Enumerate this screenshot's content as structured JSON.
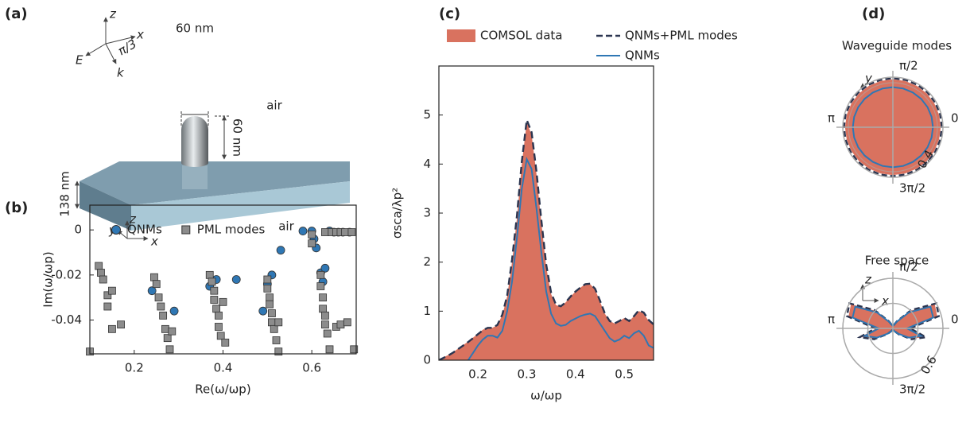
{
  "panel_labels": [
    "(a)",
    "(b)",
    "(c)",
    "(d)"
  ],
  "illustration": {
    "dims": [
      "60 nm",
      "60 nm",
      "138 nm"
    ],
    "media": [
      "air",
      "air"
    ],
    "axes": [
      "z",
      "x",
      "E",
      "k",
      "π/3",
      "y",
      "z",
      "x"
    ]
  },
  "chart_data": [
    {
      "type": "scatter",
      "xlabel": "Re(ω/ωp)",
      "ylabel": "Im(ω/ωp)",
      "xlim": [
        0.1,
        0.7
      ],
      "ylim": [
        -0.055,
        0.011
      ],
      "xticks": [
        0.2,
        0.4,
        0.6
      ],
      "yticks": [
        0,
        -0.02,
        -0.04
      ],
      "legend": "upper left",
      "series": [
        {
          "name": "QNMs",
          "color": "#2f77b4",
          "marker": "circle",
          "x": [
            0.24,
            0.29,
            0.37,
            0.385,
            0.43,
            0.49,
            0.5,
            0.51,
            0.53,
            0.58,
            0.6,
            0.605,
            0.61,
            0.62,
            0.625,
            0.63,
            0.64,
            0.65,
            0.66,
            0.67,
            0.685
          ],
          "values": [
            -0.027,
            -0.036,
            -0.025,
            -0.022,
            -0.022,
            -0.036,
            -0.024,
            -0.02,
            -0.009,
            -0.0005,
            -0.0005,
            -0.004,
            -0.008,
            -0.019,
            -0.023,
            -0.017,
            -0.0005,
            -0.001,
            -0.001,
            -0.001,
            -0.001
          ]
        },
        {
          "name": "PML modes",
          "color": "#8c8c8c",
          "marker": "square",
          "x": [
            0.1,
            0.12,
            0.125,
            0.13,
            0.14,
            0.14,
            0.15,
            0.15,
            0.17,
            0.245,
            0.25,
            0.255,
            0.26,
            0.265,
            0.27,
            0.275,
            0.28,
            0.285,
            0.37,
            0.375,
            0.38,
            0.38,
            0.385,
            0.39,
            0.39,
            0.395,
            0.405,
            0.4,
            0.5,
            0.5,
            0.505,
            0.505,
            0.51,
            0.51,
            0.515,
            0.52,
            0.525,
            0.525,
            0.6,
            0.6,
            0.62,
            0.62,
            0.625,
            0.625,
            0.63,
            0.63,
            0.635,
            0.64,
            0.655,
            0.665,
            0.68,
            0.695,
            0.63,
            0.645,
            0.655,
            0.665,
            0.675,
            0.69
          ],
          "values": [
            -0.054,
            -0.016,
            -0.019,
            -0.022,
            -0.029,
            -0.034,
            -0.027,
            -0.044,
            -0.042,
            -0.021,
            -0.024,
            -0.03,
            -0.034,
            -0.038,
            -0.044,
            -0.048,
            -0.053,
            -0.045,
            -0.02,
            -0.023,
            -0.027,
            -0.031,
            -0.035,
            -0.038,
            -0.043,
            -0.047,
            -0.05,
            -0.032,
            -0.022,
            -0.026,
            -0.03,
            -0.033,
            -0.037,
            -0.041,
            -0.044,
            -0.049,
            -0.054,
            -0.041,
            -0.002,
            -0.006,
            -0.02,
            -0.025,
            -0.03,
            -0.035,
            -0.038,
            -0.042,
            -0.046,
            -0.053,
            -0.043,
            -0.042,
            -0.041,
            -0.053,
            -0.001,
            -0.001,
            -0.001,
            -0.001,
            -0.001,
            -0.001
          ]
        }
      ]
    },
    {
      "type": "line",
      "xlabel": "ω/ωp",
      "ylabel": "σsca/λp²",
      "xlim": [
        0.12,
        0.56
      ],
      "ylim": [
        0,
        6
      ],
      "xticks": [
        0.2,
        0.3,
        0.4,
        0.5
      ],
      "yticks": [
        0,
        1,
        2,
        3,
        4,
        5
      ],
      "legend": "top",
      "x": [
        0.12,
        0.13,
        0.14,
        0.15,
        0.16,
        0.17,
        0.18,
        0.19,
        0.2,
        0.21,
        0.22,
        0.23,
        0.24,
        0.25,
        0.26,
        0.27,
        0.28,
        0.29,
        0.3,
        0.31,
        0.32,
        0.33,
        0.34,
        0.35,
        0.36,
        0.37,
        0.38,
        0.39,
        0.4,
        0.41,
        0.42,
        0.43,
        0.44,
        0.45,
        0.46,
        0.47,
        0.48,
        0.49,
        0.5,
        0.51,
        0.52,
        0.53,
        0.54,
        0.55,
        0.56
      ],
      "series": [
        {
          "name": "COMSOL data",
          "color": "#d9725f",
          "kind": "area",
          "values": [
            0.02,
            0.06,
            0.11,
            0.17,
            0.24,
            0.31,
            0.38,
            0.46,
            0.54,
            0.62,
            0.67,
            0.66,
            0.72,
            0.92,
            1.3,
            2.0,
            2.9,
            4.0,
            4.85,
            4.6,
            3.8,
            2.8,
            1.9,
            1.35,
            1.12,
            1.1,
            1.18,
            1.3,
            1.4,
            1.48,
            1.55,
            1.55,
            1.45,
            1.2,
            0.95,
            0.8,
            0.75,
            0.8,
            0.86,
            0.8,
            0.9,
            1.0,
            0.95,
            0.8,
            0.72
          ]
        },
        {
          "name": "QNMs+PML modes",
          "color": "#2b3550",
          "kind": "line",
          "dash": true,
          "values": [
            0,
            0.05,
            0.1,
            0.16,
            0.23,
            0.3,
            0.37,
            0.45,
            0.53,
            0.61,
            0.66,
            0.66,
            0.72,
            0.93,
            1.32,
            2.05,
            2.95,
            4.05,
            4.9,
            4.65,
            3.85,
            2.85,
            1.95,
            1.38,
            1.13,
            1.1,
            1.18,
            1.3,
            1.4,
            1.48,
            1.55,
            1.56,
            1.46,
            1.22,
            0.96,
            0.8,
            0.75,
            0.8,
            0.86,
            0.8,
            0.9,
            1.02,
            0.97,
            0.82,
            0.73
          ]
        },
        {
          "name": "QNMs",
          "color": "#2f77b4",
          "kind": "line",
          "values": [
            null,
            null,
            null,
            null,
            null,
            null,
            0,
            0.15,
            0.3,
            0.42,
            0.5,
            0.5,
            0.46,
            0.6,
            1.0,
            1.6,
            2.5,
            3.5,
            4.1,
            3.9,
            3.1,
            2.2,
            1.4,
            0.95,
            0.75,
            0.7,
            0.72,
            0.8,
            0.85,
            0.9,
            0.93,
            0.95,
            0.9,
            0.75,
            0.6,
            0.45,
            0.38,
            0.42,
            0.5,
            0.45,
            0.55,
            0.6,
            0.5,
            0.3,
            0.25
          ]
        }
      ]
    },
    {
      "type": "polar",
      "title": "Waveguide modes",
      "axis_labels": [
        "y",
        "x"
      ],
      "rlim": [
        0,
        0.45
      ],
      "rticks": [
        0.4
      ],
      "thetaticks": [
        0,
        {
          "value": 90,
          "label": "π/2"
        },
        {
          "value": 180,
          "label": "π"
        },
        {
          "value": 270,
          "label": "3π/2"
        }
      ],
      "theta": [
        0,
        15,
        30,
        45,
        60,
        75,
        90,
        105,
        120,
        135,
        150,
        165,
        180,
        195,
        210,
        225,
        240,
        255,
        270,
        285,
        300,
        315,
        330,
        345
      ],
      "series": [
        {
          "name": "COMSOL data",
          "color": "#d9725f",
          "kind": "area",
          "values": [
            0.43,
            0.43,
            0.43,
            0.43,
            0.43,
            0.43,
            0.43,
            0.43,
            0.43,
            0.43,
            0.43,
            0.43,
            0.43,
            0.43,
            0.43,
            0.43,
            0.43,
            0.43,
            0.43,
            0.43,
            0.43,
            0.43,
            0.43,
            0.43
          ]
        },
        {
          "name": "QNMs+PML modes",
          "color": "#2b3550",
          "kind": "line",
          "dash": true,
          "values": [
            0.44,
            0.44,
            0.44,
            0.44,
            0.44,
            0.44,
            0.44,
            0.44,
            0.44,
            0.44,
            0.44,
            0.44,
            0.44,
            0.44,
            0.44,
            0.44,
            0.44,
            0.44,
            0.44,
            0.44,
            0.44,
            0.44,
            0.44,
            0.44
          ]
        },
        {
          "name": "QNMs",
          "color": "#2f77b4",
          "kind": "line",
          "values": [
            0.36,
            0.36,
            0.36,
            0.36,
            0.36,
            0.36,
            0.36,
            0.36,
            0.36,
            0.36,
            0.36,
            0.36,
            0.36,
            0.36,
            0.36,
            0.36,
            0.36,
            0.36,
            0.36,
            0.36,
            0.36,
            0.36,
            0.36,
            0.36
          ]
        }
      ]
    },
    {
      "type": "polar",
      "title": "Free space",
      "axis_labels": [
        "z",
        "x"
      ],
      "rlim": [
        0,
        0.6
      ],
      "rticks": [
        0.6
      ],
      "rgrid": [
        0.3
      ],
      "thetaticks": [
        0,
        {
          "value": 90,
          "label": "π/2"
        },
        {
          "value": 180,
          "label": "π"
        },
        {
          "value": 270,
          "label": "3π/2"
        }
      ],
      "theta": [
        0,
        15,
        30,
        45,
        60,
        75,
        90,
        105,
        120,
        135,
        150,
        165,
        180,
        195,
        210,
        225,
        240,
        255,
        270,
        285,
        300,
        315,
        330,
        345
      ],
      "series": [
        {
          "name": "COMSOL data",
          "color": "#d9725f",
          "kind": "area",
          "values": [
            0.2,
            0.55,
            0.58,
            0.3,
            0.1,
            0.04,
            0.03,
            0.04,
            0.1,
            0.3,
            0.58,
            0.55,
            0.2,
            0.4,
            0.25,
            0.1,
            0.04,
            0.02,
            0.02,
            0.02,
            0.04,
            0.1,
            0.25,
            0.4
          ]
        },
        {
          "name": "QNMs+PML modes",
          "color": "#2b3550",
          "kind": "line",
          "dash": true,
          "values": [
            0.21,
            0.57,
            0.6,
            0.31,
            0.1,
            0.04,
            0.03,
            0.04,
            0.1,
            0.31,
            0.6,
            0.57,
            0.21,
            0.41,
            0.26,
            0.1,
            0.04,
            0.02,
            0.02,
            0.02,
            0.04,
            0.1,
            0.26,
            0.41
          ]
        },
        {
          "name": "QNMs",
          "color": "#2f77b4",
          "kind": "line",
          "values": [
            0.17,
            0.5,
            0.52,
            0.27,
            0.09,
            0.04,
            0.03,
            0.04,
            0.09,
            0.27,
            0.52,
            0.5,
            0.17,
            0.35,
            0.22,
            0.09,
            0.04,
            0.02,
            0.02,
            0.02,
            0.04,
            0.09,
            0.22,
            0.35
          ]
        }
      ]
    }
  ]
}
